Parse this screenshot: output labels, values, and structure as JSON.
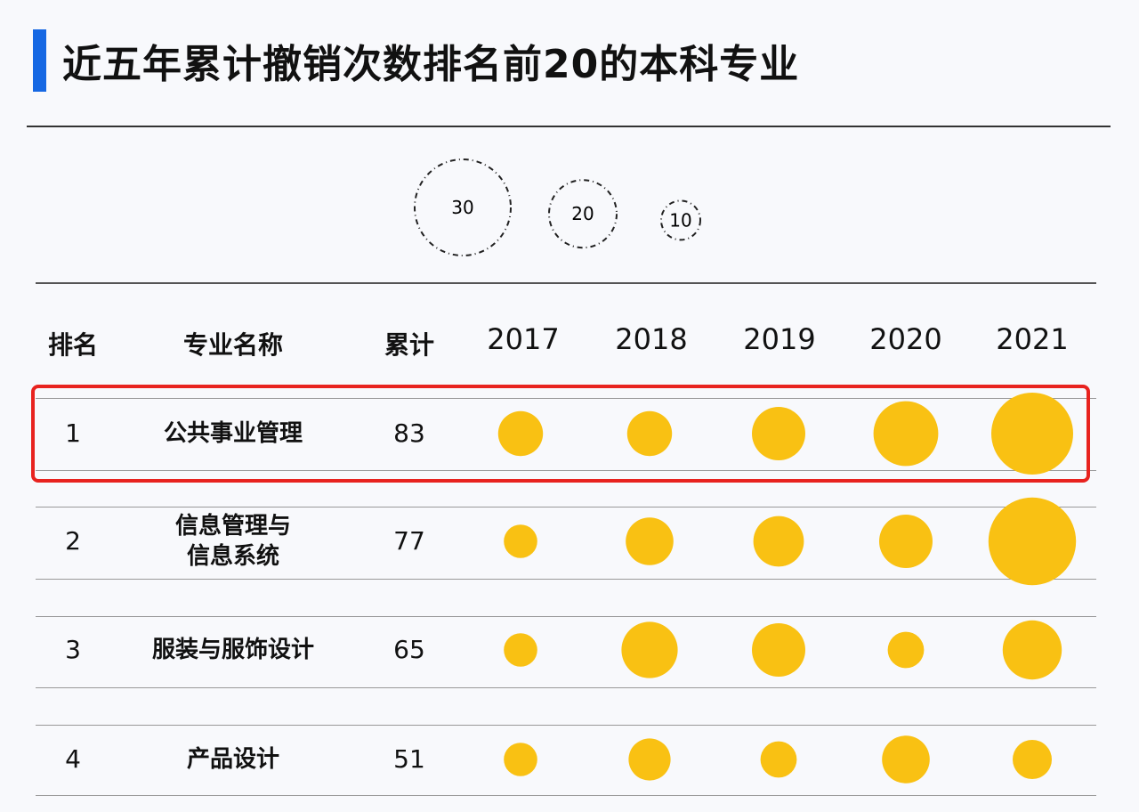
{
  "title": "近五年累计撤销次数排名前20的本科专业",
  "colors": {
    "accent": "#1668e3",
    "bubble": "#f9c113",
    "highlight": "#e8231f"
  },
  "chart_data": {
    "type": "bubble-table",
    "title": "近五年累计撤销次数排名前20的本科专业",
    "size_legend": [
      30,
      20,
      10
    ],
    "columns": [
      "排名",
      "专业名称",
      "累计",
      "2017",
      "2018",
      "2019",
      "2020",
      "2021"
    ],
    "years": [
      "2017",
      "2018",
      "2019",
      "2020",
      "2021"
    ],
    "rows": [
      {
        "rank": "1",
        "name": "公共事业管理",
        "total": "83",
        "values": [
          12,
          12,
          15,
          19,
          25
        ],
        "highlighted": true
      },
      {
        "rank": "2",
        "name": "信息管理与\n信息系统",
        "total": "77",
        "values": [
          8,
          13,
          14,
          15,
          27
        ]
      },
      {
        "rank": "3",
        "name": "服装与服饰设计",
        "total": "65",
        "values": [
          8,
          16,
          15,
          9,
          17
        ]
      },
      {
        "rank": "4",
        "name": "产品设计",
        "total": "51",
        "values": [
          8,
          11,
          9,
          13,
          10
        ]
      }
    ]
  }
}
